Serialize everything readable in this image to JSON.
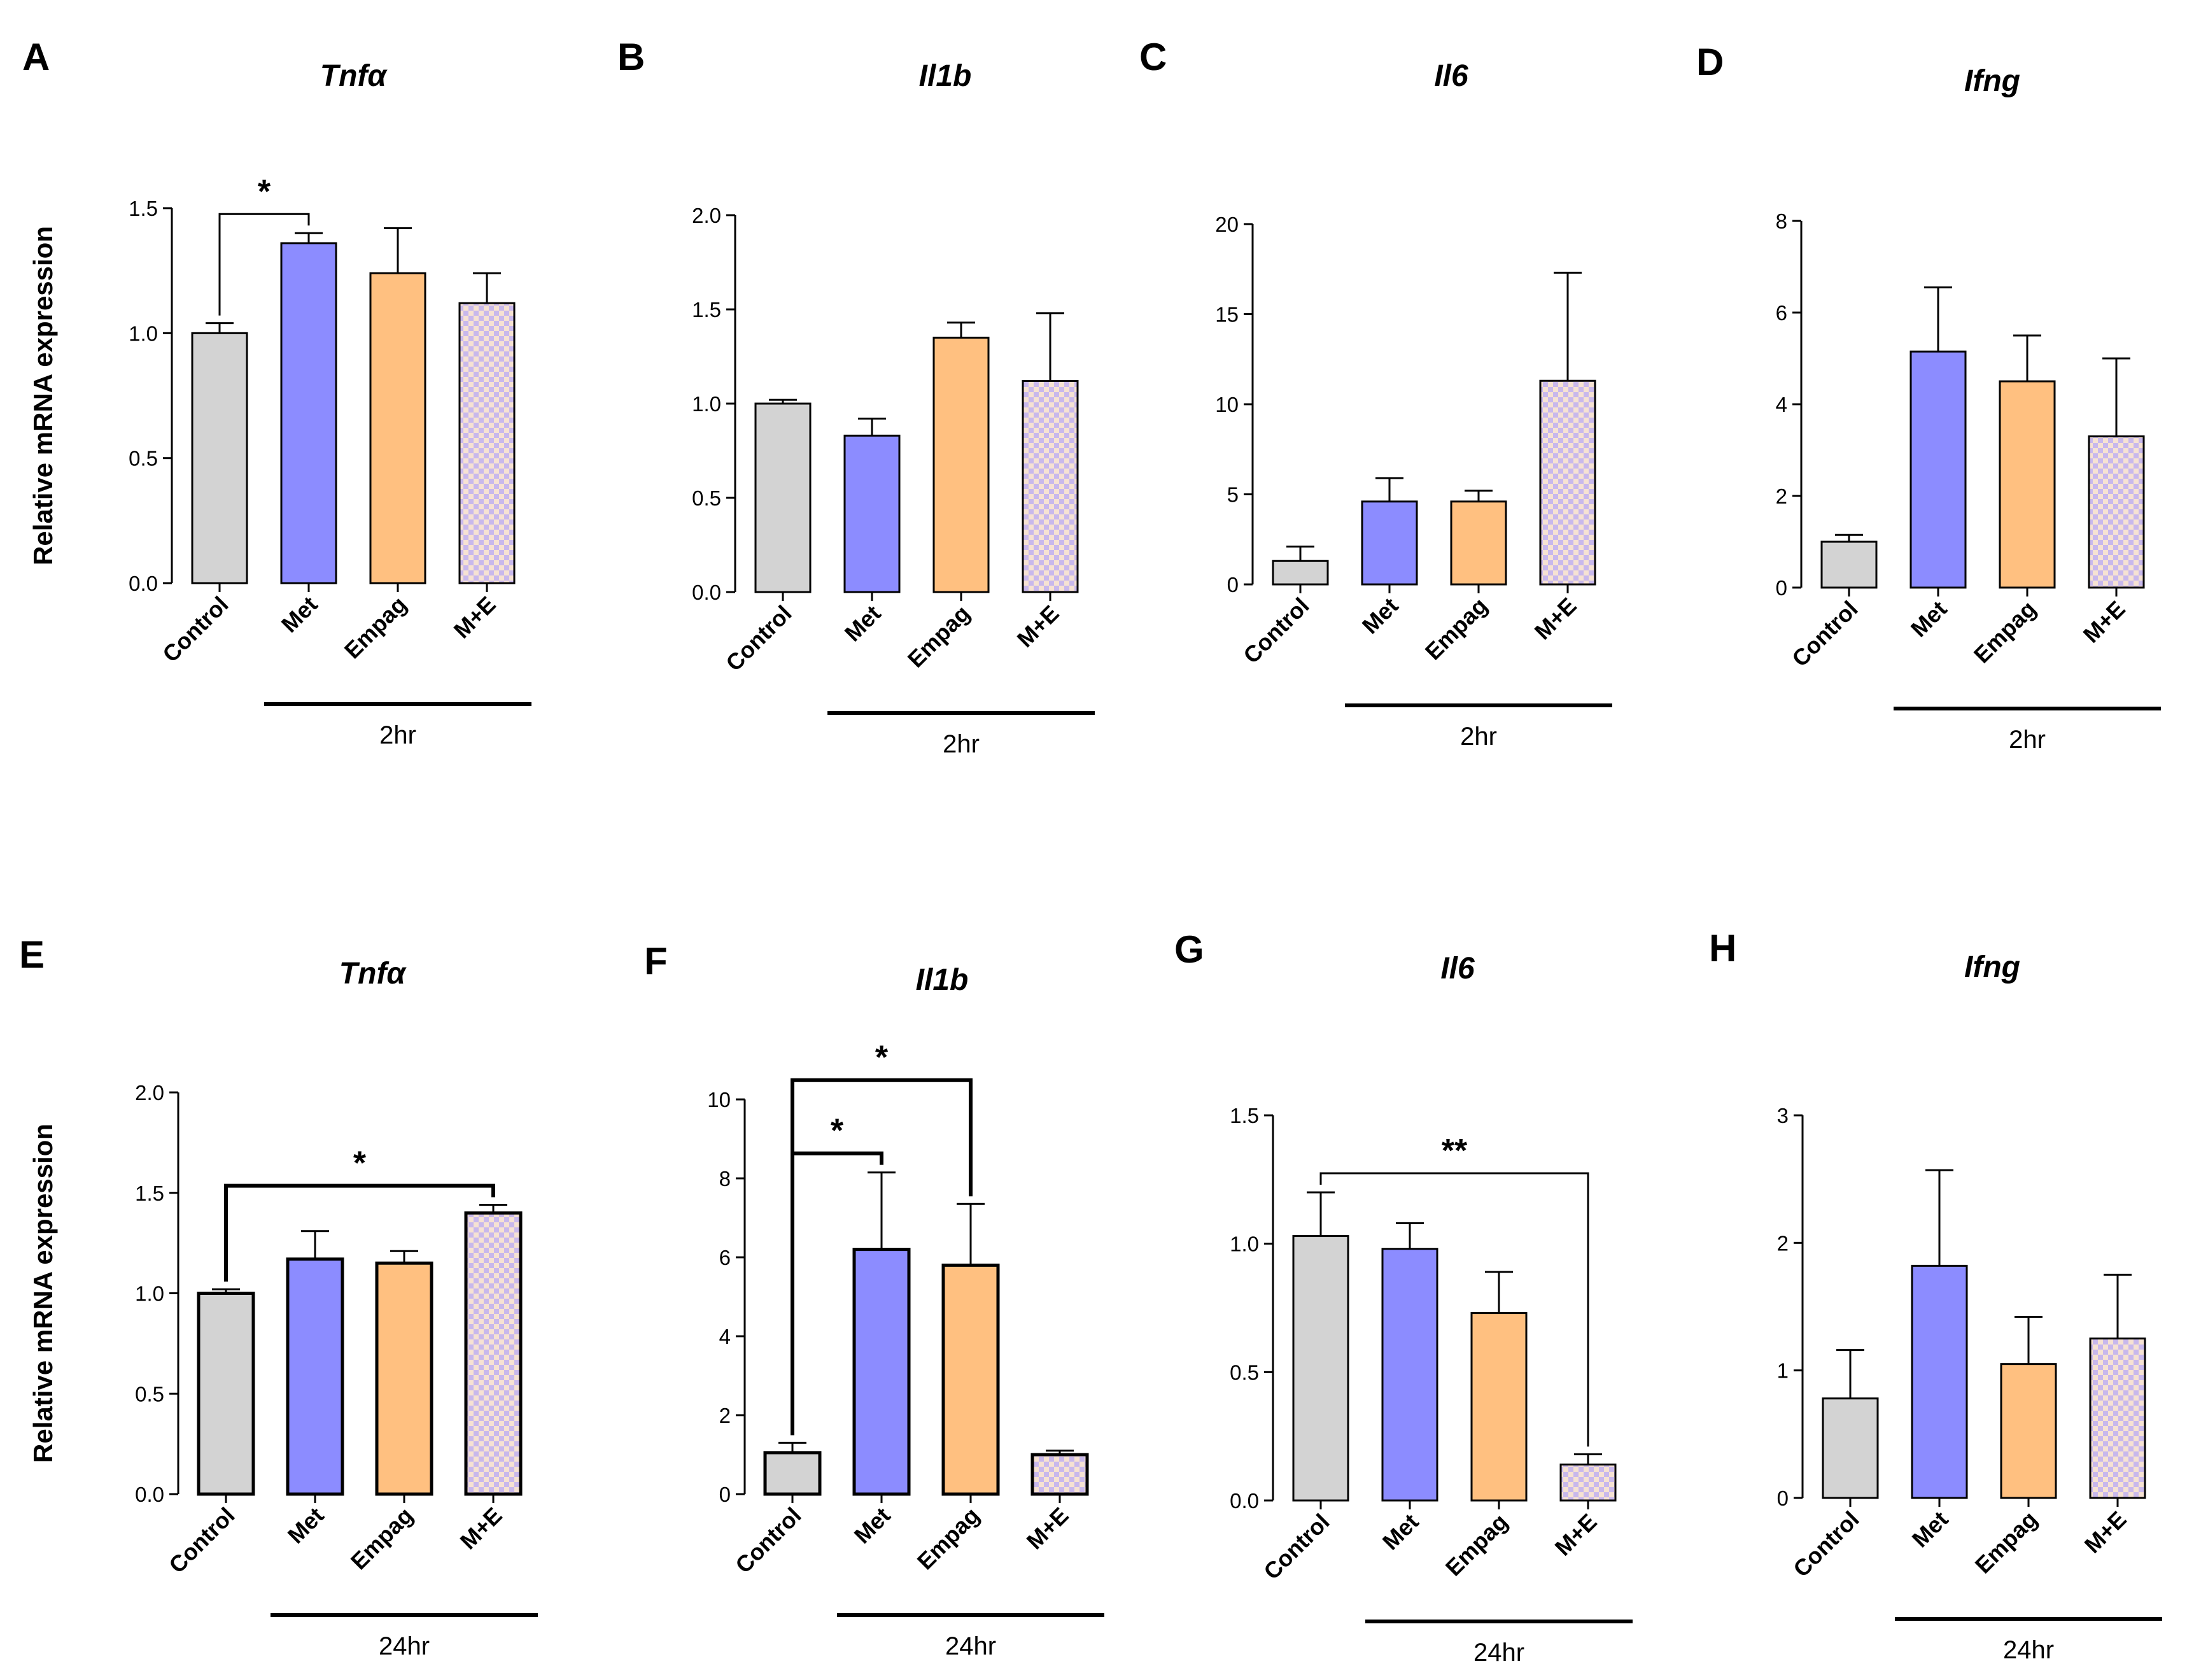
{
  "colors": {
    "control": "#d3d3d3",
    "met": "#8c8cff",
    "empag": "#ffc080",
    "me_a": "#c8b8ec",
    "me_b": "#f6e2d3",
    "axis": "#000000"
  },
  "y_axis_label": "Relative mRNA expression",
  "chart_data": [
    {
      "panel": "A",
      "type": "bar",
      "title": "Tnfα",
      "ylabel": "Relative mRNA expression",
      "categories": [
        "Control",
        "Met",
        "Empag",
        "M+E"
      ],
      "values": [
        1.0,
        1.36,
        1.24,
        1.12
      ],
      "errors": [
        0.04,
        0.04,
        0.18,
        0.12
      ],
      "ylim": [
        0,
        1.5
      ],
      "yticks": [
        "0.0",
        "0.5",
        "1.0",
        "1.5"
      ],
      "time": "2hr",
      "sig": [
        {
          "from": 0,
          "to": 1,
          "label": "*"
        }
      ]
    },
    {
      "panel": "B",
      "type": "bar",
      "title": "Il1b",
      "ylabel": "",
      "categories": [
        "Control",
        "Met",
        "Empag",
        "M+E"
      ],
      "values": [
        1.0,
        0.83,
        1.35,
        1.12
      ],
      "errors": [
        0.02,
        0.09,
        0.08,
        0.36
      ],
      "ylim": [
        0,
        2.0
      ],
      "yticks": [
        "0.0",
        "0.5",
        "1.0",
        "1.5",
        "2.0"
      ],
      "time": "2hr",
      "sig": []
    },
    {
      "panel": "C",
      "type": "bar",
      "title": "Il6",
      "ylabel": "",
      "categories": [
        "Control",
        "Met",
        "Empag",
        "M+E"
      ],
      "values": [
        1.3,
        4.6,
        4.6,
        11.3
      ],
      "errors": [
        0.8,
        1.3,
        0.6,
        6.0
      ],
      "ylim": [
        0,
        20
      ],
      "yticks": [
        "0",
        "5",
        "10",
        "15",
        "20"
      ],
      "time": "2hr",
      "sig": []
    },
    {
      "panel": "D",
      "type": "bar",
      "title": "Ifng",
      "ylabel": "",
      "categories": [
        "Control",
        "Met",
        "Empag",
        "M+E"
      ],
      "values": [
        1.0,
        5.15,
        4.5,
        3.3
      ],
      "errors": [
        0.15,
        1.4,
        1.0,
        1.7
      ],
      "ylim": [
        0,
        8
      ],
      "yticks": [
        "0",
        "2",
        "4",
        "6",
        "8"
      ],
      "time": "2hr",
      "sig": []
    },
    {
      "panel": "E",
      "type": "bar",
      "title": "Tnfα",
      "ylabel": "Relative mRNA expression",
      "categories": [
        "Control",
        "Met",
        "Empag",
        "M+E"
      ],
      "values": [
        1.0,
        1.17,
        1.15,
        1.4
      ],
      "errors": [
        0.02,
        0.14,
        0.06,
        0.04
      ],
      "ylim": [
        0,
        2.0
      ],
      "yticks": [
        "0.0",
        "0.5",
        "1.0",
        "1.5",
        "2.0"
      ],
      "time": "24hr",
      "sig": [
        {
          "from": 0,
          "to": 3,
          "label": "*"
        }
      ]
    },
    {
      "panel": "F",
      "type": "bar",
      "title": "Il1b",
      "ylabel": "",
      "categories": [
        "Control",
        "Met",
        "Empag",
        "M+E"
      ],
      "values": [
        1.05,
        6.2,
        5.8,
        1.0
      ],
      "errors": [
        0.25,
        1.95,
        1.55,
        0.1
      ],
      "ylim": [
        0,
        10
      ],
      "yticks": [
        "0",
        "2",
        "4",
        "6",
        "8",
        "10"
      ],
      "time": "24hr",
      "sig": [
        {
          "from": 0,
          "to": 1,
          "label": "*"
        },
        {
          "from": 0,
          "to": 2,
          "label": "*"
        }
      ]
    },
    {
      "panel": "G",
      "type": "bar",
      "title": "Il6",
      "ylabel": "",
      "categories": [
        "Control",
        "Met",
        "Empag",
        "M+E"
      ],
      "values": [
        1.03,
        0.98,
        0.73,
        0.14
      ],
      "errors": [
        0.17,
        0.1,
        0.16,
        0.04
      ],
      "ylim": [
        0,
        1.5
      ],
      "yticks": [
        "0.0",
        "0.5",
        "1.0",
        "1.5"
      ],
      "time": "24hr",
      "sig": [
        {
          "from": 0,
          "to": 3,
          "label": "**"
        }
      ]
    },
    {
      "panel": "H",
      "type": "bar",
      "title": "Ifng",
      "ylabel": "",
      "categories": [
        "Control",
        "Met",
        "Empag",
        "M+E"
      ],
      "values": [
        0.78,
        1.82,
        1.05,
        1.25
      ],
      "errors": [
        0.38,
        0.75,
        0.37,
        0.5
      ],
      "ylim": [
        0,
        3
      ],
      "yticks": [
        "0",
        "1",
        "2",
        "3"
      ],
      "time": "24hr",
      "sig": []
    }
  ]
}
